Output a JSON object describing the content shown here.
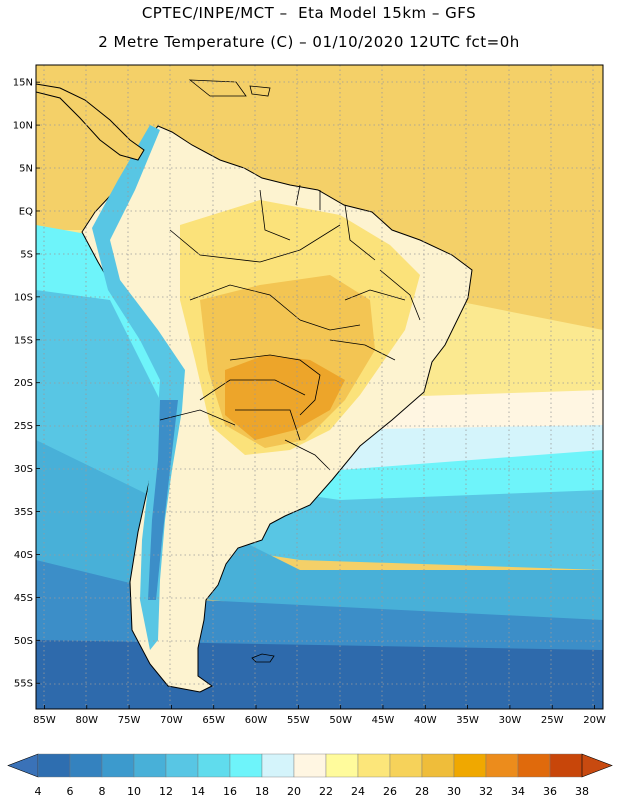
{
  "header": {
    "line1": "CPTEC/INPE/MCT –  Eta Model 15km – GFS",
    "line2": "2 Metre Temperature (C) – 01/10/2020 12UTC fct=0h"
  },
  "map": {
    "lon_range": [
      -86,
      -19
    ],
    "lat_range": [
      17,
      -58
    ],
    "lat_ticks": [
      {
        "value": 15,
        "label": "15N"
      },
      {
        "value": 10,
        "label": "10N"
      },
      {
        "value": 5,
        "label": "5N"
      },
      {
        "value": 0,
        "label": "EQ"
      },
      {
        "value": -5,
        "label": "5S"
      },
      {
        "value": -10,
        "label": "10S"
      },
      {
        "value": -15,
        "label": "15S"
      },
      {
        "value": -20,
        "label": "20S"
      },
      {
        "value": -25,
        "label": "25S"
      },
      {
        "value": -30,
        "label": "30S"
      },
      {
        "value": -35,
        "label": "35S"
      },
      {
        "value": -40,
        "label": "40S"
      },
      {
        "value": -45,
        "label": "45S"
      },
      {
        "value": -50,
        "label": "50S"
      },
      {
        "value": -55,
        "label": "55S"
      }
    ],
    "lon_ticks": [
      {
        "value": -85,
        "label": "85W"
      },
      {
        "value": -80,
        "label": "80W"
      },
      {
        "value": -75,
        "label": "75W"
      },
      {
        "value": -70,
        "label": "70W"
      },
      {
        "value": -65,
        "label": "65W"
      },
      {
        "value": -60,
        "label": "60W"
      },
      {
        "value": -55,
        "label": "55W"
      },
      {
        "value": -50,
        "label": "50W"
      },
      {
        "value": -45,
        "label": "45W"
      },
      {
        "value": -40,
        "label": "40W"
      },
      {
        "value": -35,
        "label": "35W"
      },
      {
        "value": -30,
        "label": "30W"
      },
      {
        "value": -25,
        "label": "25W"
      },
      {
        "value": -20,
        "label": "20W"
      }
    ]
  },
  "colorbar": {
    "labels": [
      "4",
      "6",
      "8",
      "10",
      "12",
      "14",
      "16",
      "18",
      "20",
      "22",
      "24",
      "26",
      "28",
      "30",
      "32",
      "34",
      "36",
      "38"
    ],
    "colors": [
      "#2e6eb0",
      "#3482bf",
      "#3c9acd",
      "#48b0d8",
      "#58c6e4",
      "#60dced",
      "#6ef4fa",
      "#d4f4fb",
      "#fff6e2",
      "#fffb9c",
      "#fce67a",
      "#f6d25a",
      "#efbd3a",
      "#f0a800",
      "#ec8c1c",
      "#e06a0c",
      "#c8460a"
    ],
    "low_color": "#3a72b8",
    "high_color": "#c84a10"
  }
}
